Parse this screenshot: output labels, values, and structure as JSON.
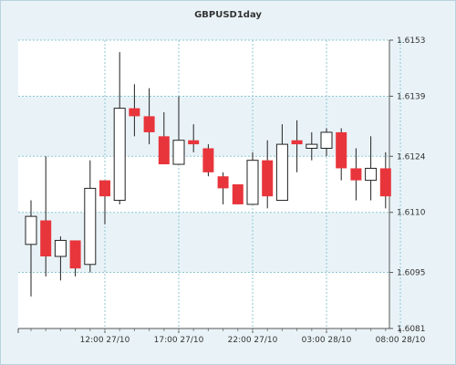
{
  "chart_data": {
    "type": "candlestick",
    "title": "GBPUSD1day",
    "ylim": [
      1.6081,
      1.6153
    ],
    "y_ticks": [
      "1.6153",
      "1.6139",
      "1.6124",
      "1.6110",
      "1.6095",
      "1.6081"
    ],
    "x_ticks": [
      {
        "label": "12:00 27/10",
        "bar_index": 5
      },
      {
        "label": "17:00 27/10",
        "bar_index": 10
      },
      {
        "label": "22:00 27/10",
        "bar_index": 15
      },
      {
        "label": "03:00 28/10",
        "bar_index": 20
      },
      {
        "label": "08:00 28/10",
        "bar_index": 25
      }
    ],
    "colors": {
      "up": "#ffffff",
      "down": "#e8353c",
      "outline": "#222222",
      "grid": "#8cc7d2",
      "band": "#ffffff"
    },
    "candles": [
      {
        "open": 1.6102,
        "high": 1.6113,
        "low": 1.6089,
        "close": 1.6109
      },
      {
        "open": 1.6108,
        "high": 1.6124,
        "low": 1.6094,
        "close": 1.6099
      },
      {
        "open": 1.6099,
        "high": 1.6104,
        "low": 1.6093,
        "close": 1.6103
      },
      {
        "open": 1.6103,
        "high": 1.6103,
        "low": 1.6094,
        "close": 1.6096
      },
      {
        "open": 1.6097,
        "high": 1.6123,
        "low": 1.6095,
        "close": 1.6116
      },
      {
        "open": 1.6118,
        "high": 1.6118,
        "low": 1.6107,
        "close": 1.6114
      },
      {
        "open": 1.6113,
        "high": 1.615,
        "low": 1.6112,
        "close": 1.6136
      },
      {
        "open": 1.6136,
        "high": 1.6142,
        "low": 1.6129,
        "close": 1.6134
      },
      {
        "open": 1.6134,
        "high": 1.6141,
        "low": 1.6127,
        "close": 1.613
      },
      {
        "open": 1.6129,
        "high": 1.6135,
        "low": 1.6122,
        "close": 1.6122
      },
      {
        "open": 1.6122,
        "high": 1.6139,
        "low": 1.6122,
        "close": 1.6128
      },
      {
        "open": 1.6128,
        "high": 1.6132,
        "low": 1.6125,
        "close": 1.6127
      },
      {
        "open": 1.6126,
        "high": 1.6127,
        "low": 1.6119,
        "close": 1.612
      },
      {
        "open": 1.6119,
        "high": 1.612,
        "low": 1.6112,
        "close": 1.6116
      },
      {
        "open": 1.6117,
        "high": 1.6117,
        "low": 1.6112,
        "close": 1.6112
      },
      {
        "open": 1.6112,
        "high": 1.6125,
        "low": 1.6112,
        "close": 1.6123
      },
      {
        "open": 1.6123,
        "high": 1.6128,
        "low": 1.6111,
        "close": 1.6114
      },
      {
        "open": 1.6113,
        "high": 1.6132,
        "low": 1.6113,
        "close": 1.6127
      },
      {
        "open": 1.6128,
        "high": 1.6133,
        "low": 1.612,
        "close": 1.6127
      },
      {
        "open": 1.6126,
        "high": 1.613,
        "low": 1.6123,
        "close": 1.6127
      },
      {
        "open": 1.6126,
        "high": 1.6131,
        "low": 1.6124,
        "close": 1.613
      },
      {
        "open": 1.613,
        "high": 1.6131,
        "low": 1.6118,
        "close": 1.6121
      },
      {
        "open": 1.6121,
        "high": 1.6126,
        "low": 1.6113,
        "close": 1.6118
      },
      {
        "open": 1.6118,
        "high": 1.6129,
        "low": 1.6113,
        "close": 1.6121
      },
      {
        "open": 1.6121,
        "high": 1.6125,
        "low": 1.6111,
        "close": 1.6114
      }
    ]
  }
}
